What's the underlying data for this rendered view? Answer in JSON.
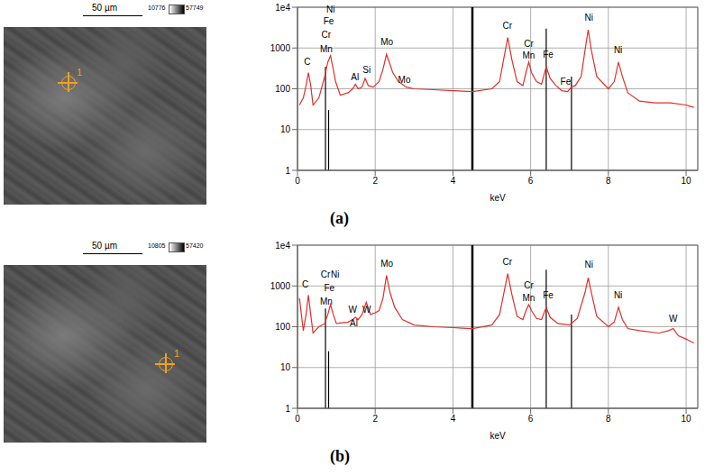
{
  "chart_data": [
    {
      "panel": "(a)",
      "type": "line",
      "log": "y",
      "grid": true,
      "xlabel": "keV",
      "xlim": [
        0,
        10.3
      ],
      "xticks": [
        0,
        2,
        4,
        6,
        8,
        10
      ],
      "ylim": [
        1,
        10000
      ],
      "yticks": [
        1,
        10,
        100,
        1000,
        {
          "value": 10000,
          "label": "1e4"
        }
      ],
      "color": "#e0302a",
      "x": [
        0.05,
        0.15,
        0.22,
        0.28,
        0.34,
        0.4,
        0.55,
        0.7,
        0.78,
        0.85,
        0.92,
        0.98,
        1.1,
        1.3,
        1.42,
        1.49,
        1.56,
        1.66,
        1.74,
        1.82,
        1.95,
        2.1,
        2.2,
        2.29,
        2.38,
        2.45,
        2.6,
        2.8,
        3.0,
        3.5,
        4.0,
        4.5,
        5.0,
        5.2,
        5.3,
        5.41,
        5.52,
        5.65,
        5.8,
        5.88,
        5.95,
        6.02,
        6.15,
        6.28,
        6.4,
        6.5,
        6.65,
        6.8,
        6.95,
        7.05,
        7.15,
        7.3,
        7.4,
        7.48,
        7.56,
        7.7,
        8.0,
        8.15,
        8.26,
        8.36,
        8.5,
        8.8,
        9.2,
        9.6,
        10.0,
        10.2
      ],
      "values": [
        40,
        60,
        120,
        250,
        120,
        40,
        60,
        200,
        450,
        650,
        300,
        150,
        70,
        80,
        100,
        130,
        100,
        110,
        180,
        120,
        110,
        150,
        300,
        700,
        400,
        250,
        150,
        110,
        100,
        95,
        90,
        85,
        100,
        150,
        500,
        1800,
        500,
        150,
        120,
        250,
        450,
        250,
        150,
        130,
        350,
        180,
        120,
        90,
        85,
        110,
        120,
        200,
        900,
        2800,
        900,
        200,
        100,
        150,
        450,
        200,
        80,
        50,
        45,
        45,
        40,
        35
      ],
      "annotations": [
        {
          "text": "C",
          "x": 0.25,
          "y": 450
        },
        {
          "text": "Ni",
          "x": 0.85,
          "y": 9000
        },
        {
          "text": "Fe",
          "x": 0.8,
          "y": 4500
        },
        {
          "text": "Cr",
          "x": 0.74,
          "y": 2100
        },
        {
          "text": "Mn",
          "x": 0.74,
          "y": 950
        },
        {
          "text": "Al",
          "x": 1.48,
          "y": 190
        },
        {
          "text": "Si",
          "x": 1.78,
          "y": 290
        },
        {
          "text": "Mo",
          "x": 2.3,
          "y": 1400
        },
        {
          "text": "Mo",
          "x": 2.75,
          "y": 170
        },
        {
          "text": "Cr",
          "x": 5.4,
          "y": 3500
        },
        {
          "text": "Cr",
          "x": 5.95,
          "y": 1300
        },
        {
          "text": "Mn",
          "x": 5.95,
          "y": 650
        },
        {
          "text": "Fe",
          "x": 6.45,
          "y": 700
        },
        {
          "text": "Fe",
          "x": 6.9,
          "y": 150
        },
        {
          "text": "Ni",
          "x": 7.5,
          "y": 5500
        },
        {
          "text": "Ni",
          "x": 8.25,
          "y": 900
        }
      ],
      "markers": [
        {
          "x": 0.72,
          "top": 350
        },
        {
          "x": 0.8,
          "top": 30
        },
        {
          "x": 4.5,
          "top": 10000
        },
        {
          "x": 6.4,
          "top": 3000
        },
        {
          "x": 7.05,
          "top": 200
        }
      ],
      "image": {
        "scale_bar": "50 µm",
        "gray_min": 10776,
        "gray_max": 57749,
        "point_label": "1"
      }
    },
    {
      "panel": "(b)",
      "type": "line",
      "log": "y",
      "grid": true,
      "xlabel": "keV",
      "xlim": [
        0,
        10.3
      ],
      "xticks": [
        0,
        2,
        4,
        6,
        8,
        10
      ],
      "ylim": [
        1,
        10000
      ],
      "yticks": [
        1,
        10,
        100,
        1000,
        {
          "value": 10000,
          "label": "1e4"
        }
      ],
      "color": "#e0302a",
      "x": [
        0.05,
        0.15,
        0.22,
        0.28,
        0.34,
        0.4,
        0.55,
        0.7,
        0.78,
        0.85,
        0.92,
        1.0,
        1.3,
        1.42,
        1.49,
        1.56,
        1.66,
        1.77,
        1.88,
        2.0,
        2.1,
        2.2,
        2.29,
        2.38,
        2.5,
        2.7,
        3.0,
        3.5,
        4.0,
        4.5,
        5.0,
        5.2,
        5.3,
        5.41,
        5.52,
        5.65,
        5.8,
        5.88,
        5.95,
        6.02,
        6.15,
        6.28,
        6.4,
        6.5,
        6.7,
        7.0,
        7.2,
        7.4,
        7.48,
        7.56,
        7.7,
        8.0,
        8.15,
        8.26,
        8.36,
        8.5,
        8.8,
        9.3,
        9.55,
        9.67,
        9.8,
        10.0,
        10.2
      ],
      "values": [
        500,
        80,
        200,
        600,
        200,
        70,
        100,
        120,
        200,
        350,
        200,
        120,
        130,
        150,
        170,
        150,
        200,
        400,
        200,
        220,
        250,
        500,
        1800,
        700,
        300,
        150,
        110,
        100,
        95,
        90,
        110,
        200,
        600,
        2000,
        600,
        180,
        150,
        250,
        350,
        250,
        160,
        150,
        300,
        170,
        120,
        110,
        160,
        700,
        1600,
        700,
        180,
        100,
        130,
        300,
        150,
        90,
        80,
        70,
        80,
        90,
        60,
        50,
        40
      ],
      "annotations": [
        {
          "text": "C",
          "x": 0.2,
          "y": 1100
        },
        {
          "text": "Cr",
          "x": 0.72,
          "y": 1900
        },
        {
          "text": "Ni",
          "x": 0.97,
          "y": 1900
        },
        {
          "text": "Fe",
          "x": 0.82,
          "y": 900
        },
        {
          "text": "Mn",
          "x": 0.74,
          "y": 420
        },
        {
          "text": "W",
          "x": 1.42,
          "y": 260
        },
        {
          "text": "W",
          "x": 1.78,
          "y": 260
        },
        {
          "text": "Al",
          "x": 1.45,
          "y": 125
        },
        {
          "text": "Mo",
          "x": 2.3,
          "y": 3600
        },
        {
          "text": "Cr",
          "x": 5.4,
          "y": 4000
        },
        {
          "text": "Cr",
          "x": 5.95,
          "y": 1050
        },
        {
          "text": "Mn",
          "x": 5.95,
          "y": 520
        },
        {
          "text": "Fe",
          "x": 6.45,
          "y": 600
        },
        {
          "text": "Ni",
          "x": 7.5,
          "y": 3300
        },
        {
          "text": "Ni",
          "x": 8.25,
          "y": 600
        },
        {
          "text": "W",
          "x": 9.67,
          "y": 160
        }
      ],
      "markers": [
        {
          "x": 0.72,
          "top": 280
        },
        {
          "x": 0.8,
          "top": 25
        },
        {
          "x": 4.5,
          "top": 10000
        },
        {
          "x": 6.4,
          "top": 2500
        },
        {
          "x": 7.05,
          "top": 200
        }
      ],
      "image": {
        "scale_bar": "50 µm",
        "gray_min": 10805,
        "gray_max": 57420,
        "point_label": "1"
      }
    }
  ]
}
